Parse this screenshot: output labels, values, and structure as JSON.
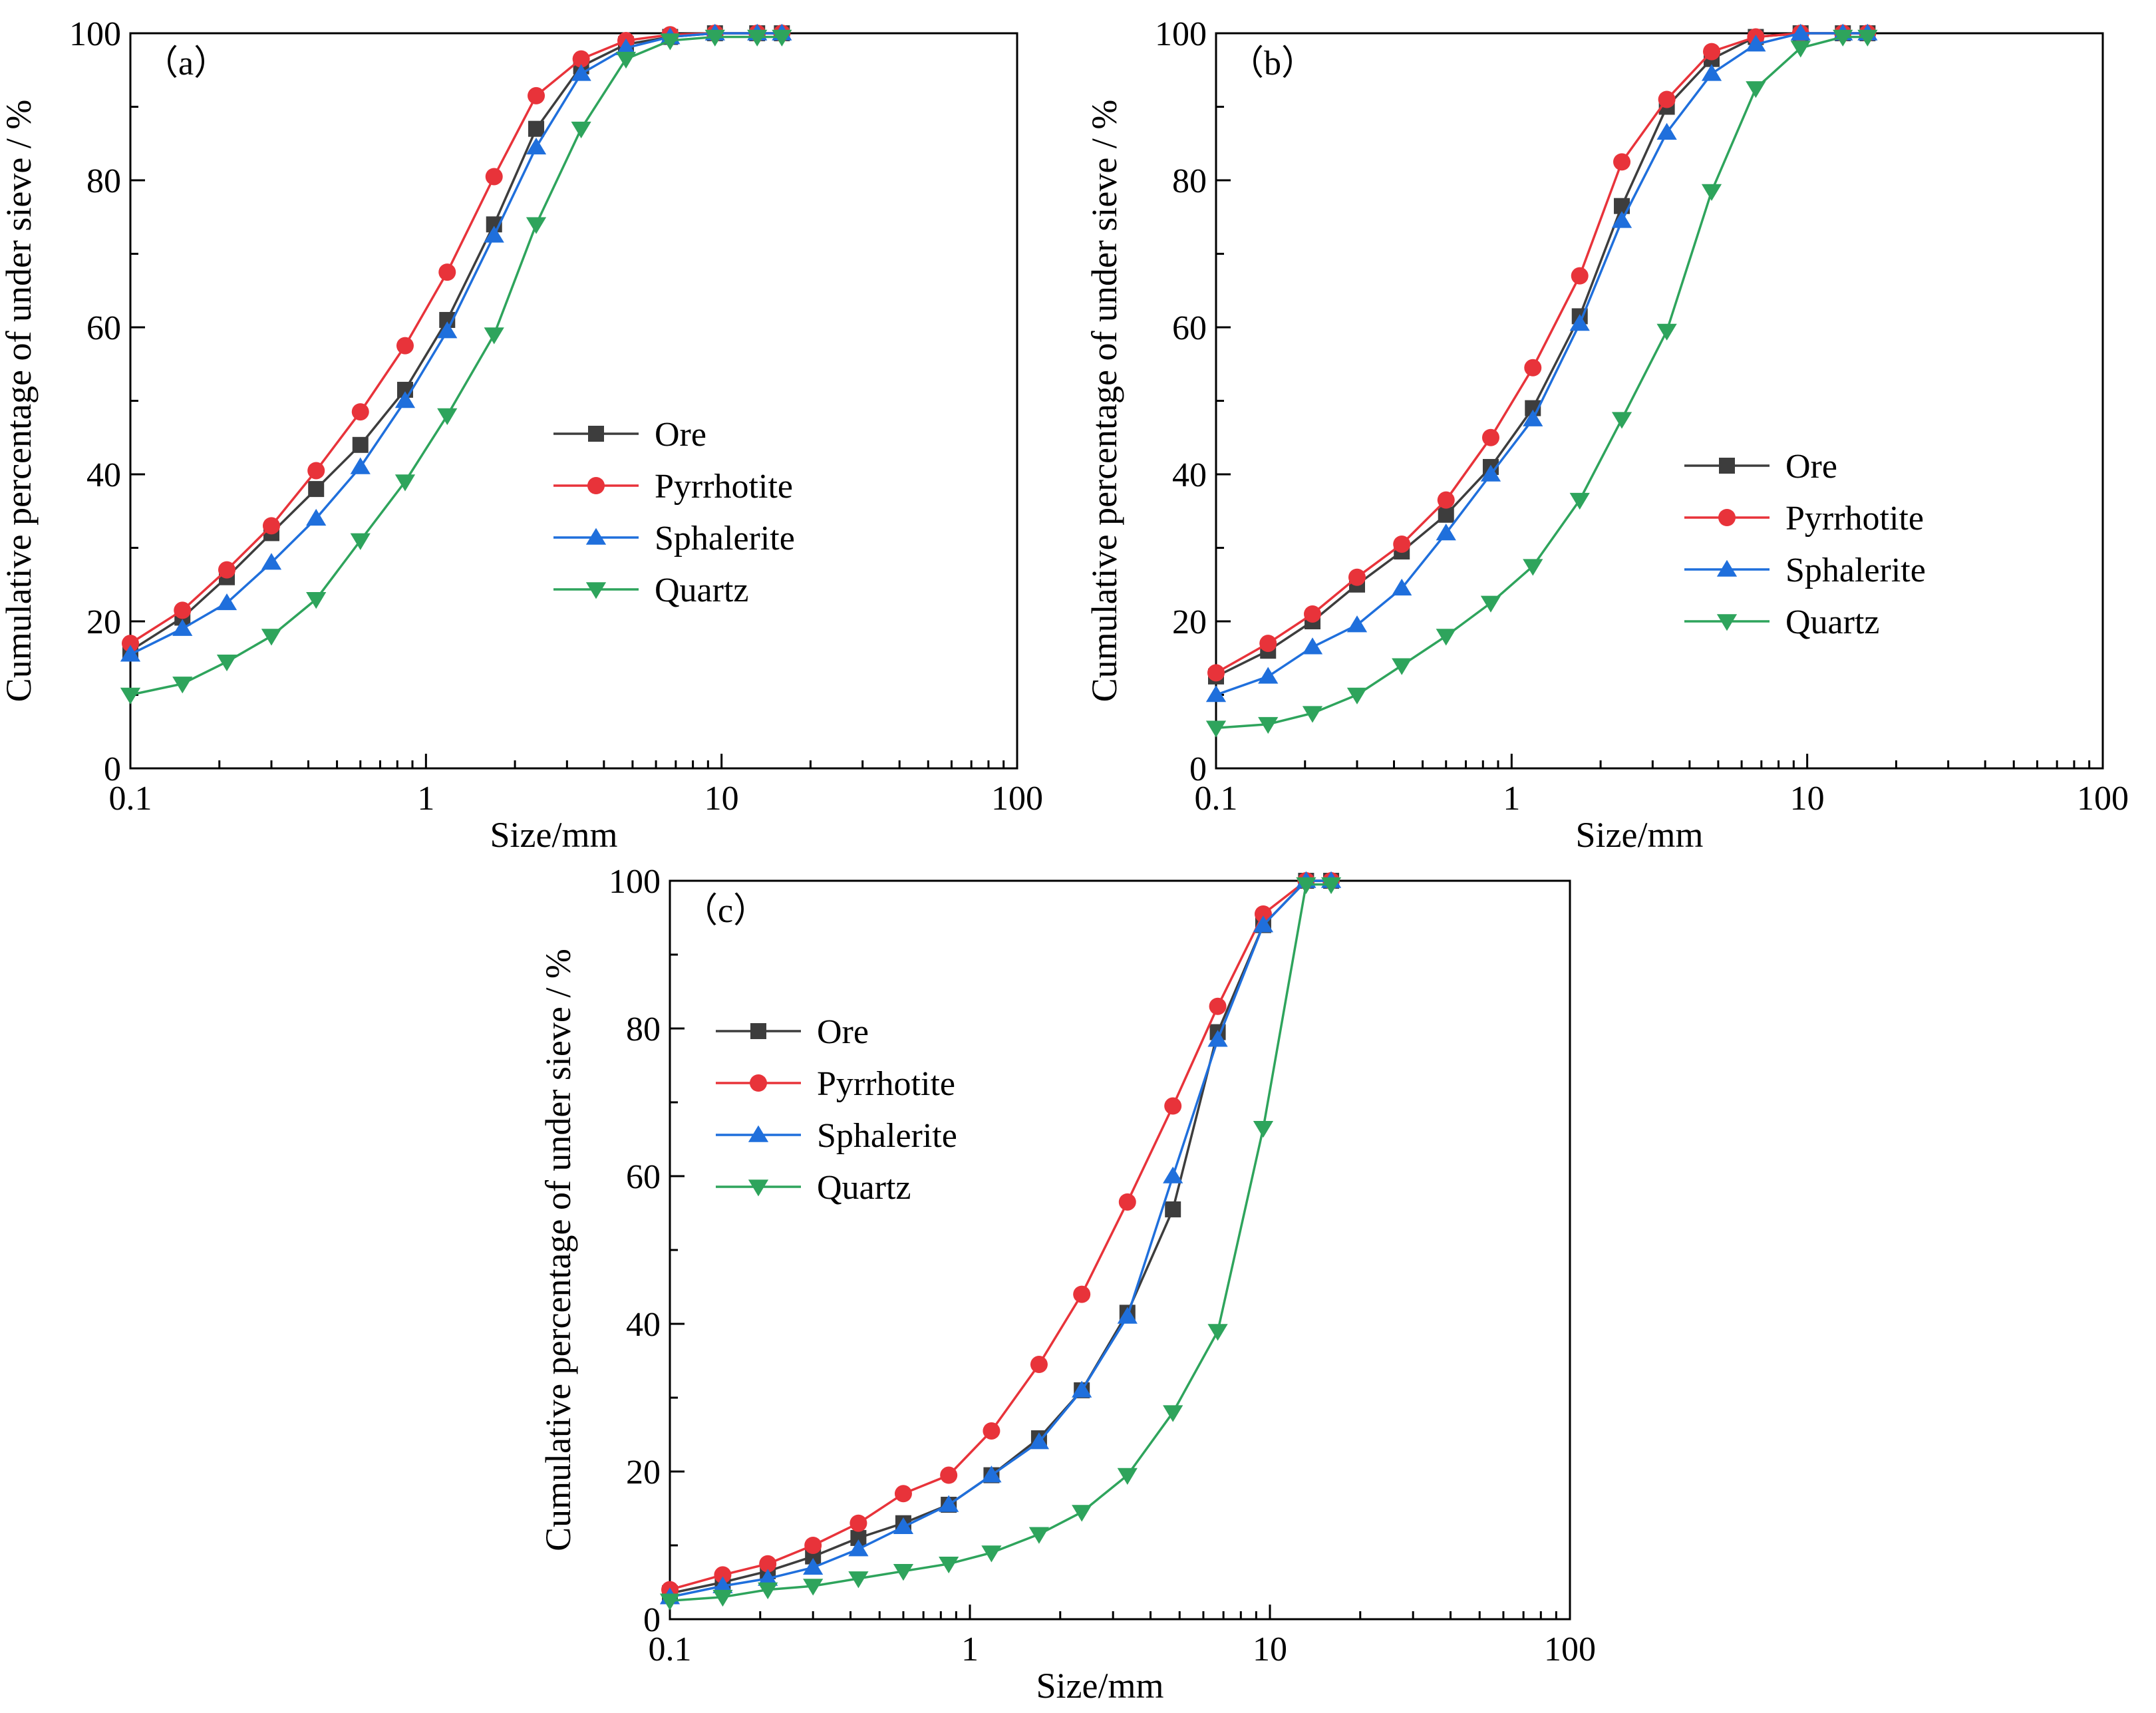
{
  "chart_data": [
    {
      "type": "line",
      "panel_label": "（a）",
      "xlabel": "Size/mm",
      "ylabel": "Cumulative percentage of under sieve / %",
      "xscale": "log",
      "xlim": [
        0.1,
        100
      ],
      "ylim": [
        0,
        100
      ],
      "x_tick_labels": [
        "0.1",
        "1",
        "10",
        "100"
      ],
      "y_tick_labels": [
        "0",
        "20",
        "40",
        "60",
        "80",
        "100"
      ],
      "legend_position": "center-right",
      "x": [
        0.1,
        0.15,
        0.212,
        0.3,
        0.425,
        0.6,
        0.85,
        1.18,
        1.7,
        2.36,
        3.35,
        4.75,
        6.7,
        9.5,
        13.2,
        16
      ],
      "series": [
        {
          "name": "Ore",
          "values": [
            16,
            20.5,
            26,
            32,
            38,
            44,
            51.5,
            61,
            74,
            87,
            95.5,
            98.5,
            99.5,
            100,
            100,
            100
          ]
        },
        {
          "name": "Pyrrhotite",
          "values": [
            17,
            21.5,
            27,
            33,
            40.5,
            48.5,
            57.5,
            67.5,
            80.5,
            91.5,
            96.5,
            99,
            99.8,
            100,
            100,
            100
          ]
        },
        {
          "name": "Sphalerite",
          "values": [
            15.5,
            19,
            22.5,
            28,
            34,
            41,
            50,
            59.5,
            72.5,
            84.5,
            94.5,
            98,
            99.5,
            100,
            100,
            100
          ]
        },
        {
          "name": "Quartz",
          "values": [
            10,
            11.5,
            14.5,
            18,
            23,
            31,
            39,
            48,
            59,
            74,
            87,
            96.5,
            99,
            99.5,
            99.5,
            99.5
          ]
        }
      ]
    },
    {
      "type": "line",
      "panel_label": "（b）",
      "xlabel": "Size/mm",
      "ylabel": "Cumulative percentage of under sieve / %",
      "xscale": "log",
      "xlim": [
        0.1,
        100
      ],
      "ylim": [
        0,
        100
      ],
      "x_tick_labels": [
        "0.1",
        "1",
        "10",
        "100"
      ],
      "y_tick_labels": [
        "0",
        "20",
        "40",
        "60",
        "80",
        "100"
      ],
      "legend_position": "center-right",
      "x": [
        0.1,
        0.15,
        0.212,
        0.3,
        0.425,
        0.6,
        0.85,
        1.18,
        1.7,
        2.36,
        3.35,
        4.75,
        6.7,
        9.5,
        13.2,
        16
      ],
      "series": [
        {
          "name": "Ore",
          "values": [
            12.5,
            16,
            20,
            25,
            29.5,
            34.5,
            41,
            49,
            61.5,
            76.5,
            90,
            96.5,
            99.5,
            100,
            100,
            100
          ]
        },
        {
          "name": "Pyrrhotite",
          "values": [
            13,
            17,
            21,
            26,
            30.5,
            36.5,
            45,
            54.5,
            67,
            82.5,
            91,
            97.5,
            99.5,
            100,
            100,
            100
          ]
        },
        {
          "name": "Sphalerite",
          "values": [
            10,
            12.5,
            16.5,
            19.5,
            24.5,
            32,
            40,
            47.5,
            60.5,
            74.5,
            86.5,
            94.5,
            98.5,
            100,
            100,
            100
          ]
        },
        {
          "name": "Quartz",
          "values": [
            5.5,
            6,
            7.5,
            10,
            14,
            18,
            22.5,
            27.5,
            36.5,
            47.5,
            59.5,
            78.5,
            92.5,
            98,
            99.5,
            99.5
          ]
        }
      ]
    },
    {
      "type": "line",
      "panel_label": "（c）",
      "xlabel": "Size/mm",
      "ylabel": "Cumulative percentage of under sieve / %",
      "xscale": "log",
      "xlim": [
        0.1,
        100
      ],
      "ylim": [
        0,
        100
      ],
      "x_tick_labels": [
        "0.1",
        "1",
        "10",
        "100"
      ],
      "y_tick_labels": [
        "0",
        "20",
        "40",
        "60",
        "80",
        "100"
      ],
      "legend_position": "top-left",
      "x": [
        0.1,
        0.15,
        0.212,
        0.3,
        0.425,
        0.6,
        0.85,
        1.18,
        1.7,
        2.36,
        3.35,
        4.75,
        6.7,
        9.5,
        13.2,
        16
      ],
      "series": [
        {
          "name": "Ore",
          "values": [
            3.5,
            5,
            6.5,
            8.5,
            11,
            13,
            15.5,
            19.5,
            24.5,
            31,
            41.5,
            55.5,
            79.5,
            94,
            100,
            100
          ]
        },
        {
          "name": "Pyrrhotite",
          "values": [
            4,
            6,
            7.5,
            10,
            13,
            17,
            19.5,
            25.5,
            34.5,
            44,
            56.5,
            69.5,
            83,
            95.5,
            100,
            100
          ]
        },
        {
          "name": "Sphalerite",
          "values": [
            3,
            4.5,
            5.5,
            7,
            9.5,
            12.5,
            15.5,
            19.5,
            24,
            31,
            41,
            60,
            78.5,
            94,
            100,
            100
          ]
        },
        {
          "name": "Quartz",
          "values": [
            2.5,
            3,
            4,
            4.5,
            5.5,
            6.5,
            7.5,
            9,
            11.5,
            14.5,
            19.5,
            28,
            39,
            66.5,
            99.5,
            99.5
          ]
        }
      ]
    }
  ],
  "styles": {
    "Ore": {
      "color": "#3d3d3d",
      "marker": "square"
    },
    "Pyrrhotite": {
      "color": "#e8333a",
      "marker": "circle"
    },
    "Sphalerite": {
      "color": "#1f6fdc",
      "marker": "triangle-up"
    },
    "Quartz": {
      "color": "#2ea45c",
      "marker": "triangle-down"
    }
  }
}
